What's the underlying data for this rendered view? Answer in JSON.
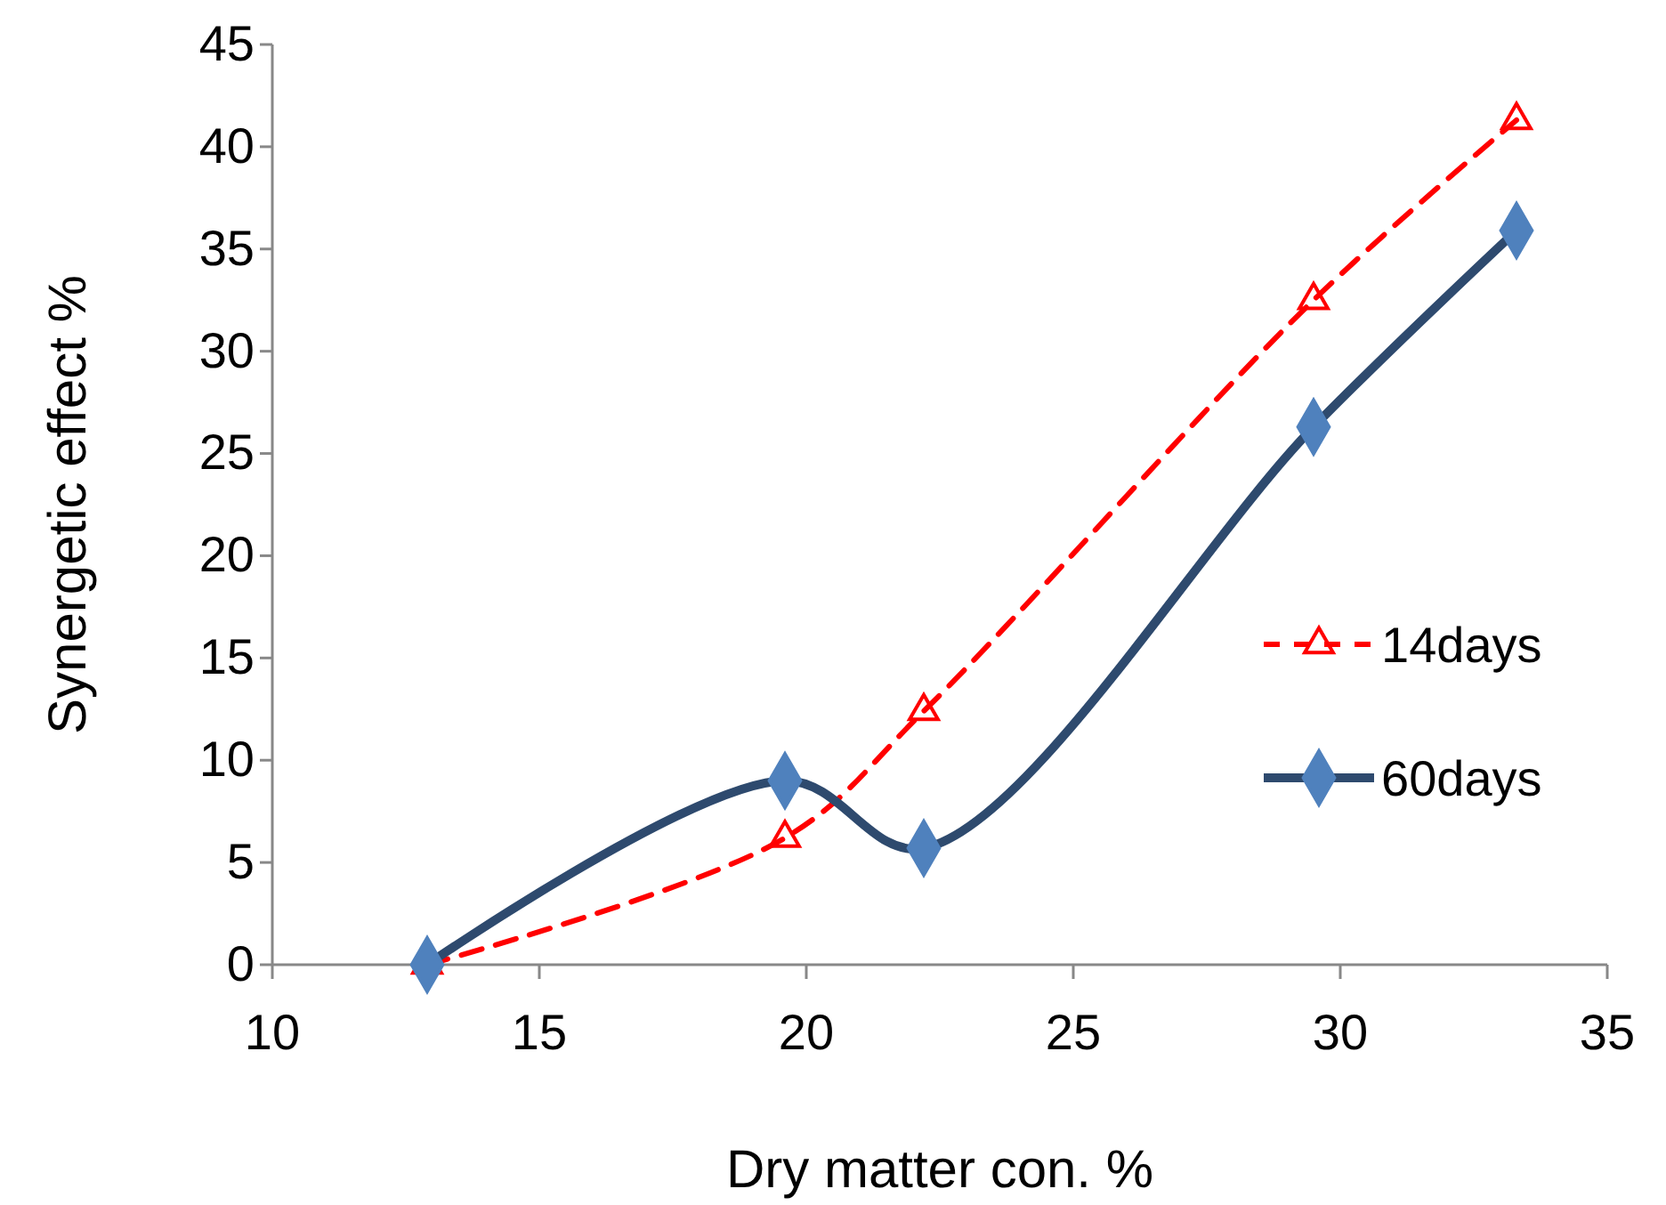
{
  "chart_data": {
    "type": "line",
    "xlabel": "Dry matter con. %",
    "ylabel": "Synergetic  effect %",
    "xlim": [
      10,
      35
    ],
    "xticks": [
      10,
      15,
      20,
      25,
      30,
      35
    ],
    "ylim": [
      0,
      45
    ],
    "yticks": [
      0,
      5,
      10,
      15,
      20,
      25,
      30,
      35,
      40,
      45
    ],
    "grid": false,
    "legend": "right",
    "series": [
      {
        "name": "14days",
        "color": "#ff0000",
        "marker": "triangle",
        "line_style": "dashed",
        "x": [
          12.9,
          19.6,
          22.2,
          29.5,
          33.3
        ],
        "values": [
          0,
          6.2,
          12.4,
          32.5,
          41.3
        ]
      },
      {
        "name": "60days",
        "color": "#2e4a6e",
        "marker": "diamond",
        "line_style": "solid",
        "x": [
          12.9,
          19.6,
          22.2,
          29.5,
          33.3
        ],
        "values": [
          0,
          9,
          5.7,
          26.3,
          35.9
        ]
      }
    ]
  }
}
